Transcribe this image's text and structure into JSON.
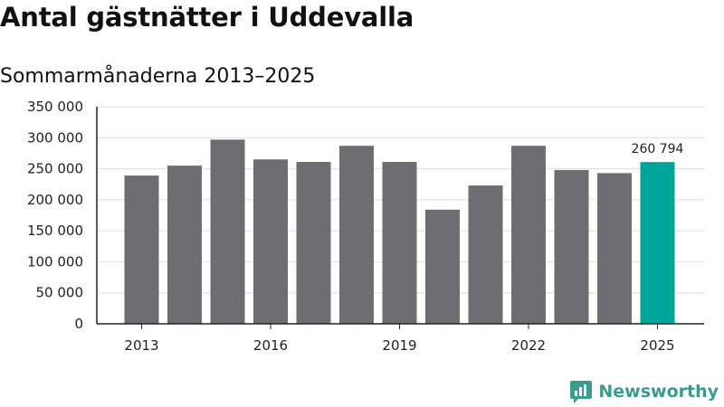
{
  "title": "Antal gästnätter i Uddevalla",
  "subtitle": "Sommarmånaderna 2013–2025",
  "brand": {
    "name": "Newsworthy",
    "color": "#3a9c8e"
  },
  "colors": {
    "bar": "#6e6d72",
    "highlight": "#00a59a",
    "grid": "#dddddd",
    "axis": "#222222"
  },
  "chart_data": {
    "type": "bar",
    "categories": [
      "2013",
      "2014",
      "2015",
      "2016",
      "2017",
      "2018",
      "2019",
      "2020",
      "2021",
      "2022",
      "2023",
      "2024",
      "2025"
    ],
    "x_tick_labels": [
      "2013",
      "2016",
      "2019",
      "2022",
      "2025"
    ],
    "values": [
      239000,
      255000,
      297000,
      265000,
      261000,
      287000,
      261000,
      184000,
      223000,
      287000,
      248000,
      243000,
      260794
    ],
    "highlight_index": 12,
    "highlight_label": "260 794",
    "ylim": [
      0,
      350000
    ],
    "y_ticks": [
      0,
      50000,
      100000,
      150000,
      200000,
      250000,
      300000,
      350000
    ],
    "y_tick_labels": [
      "0",
      "50 000",
      "100 000",
      "150 000",
      "200 000",
      "250 000",
      "300 000",
      "350 000"
    ],
    "grid": true,
    "legend": "none",
    "xlabel": "",
    "ylabel": ""
  }
}
